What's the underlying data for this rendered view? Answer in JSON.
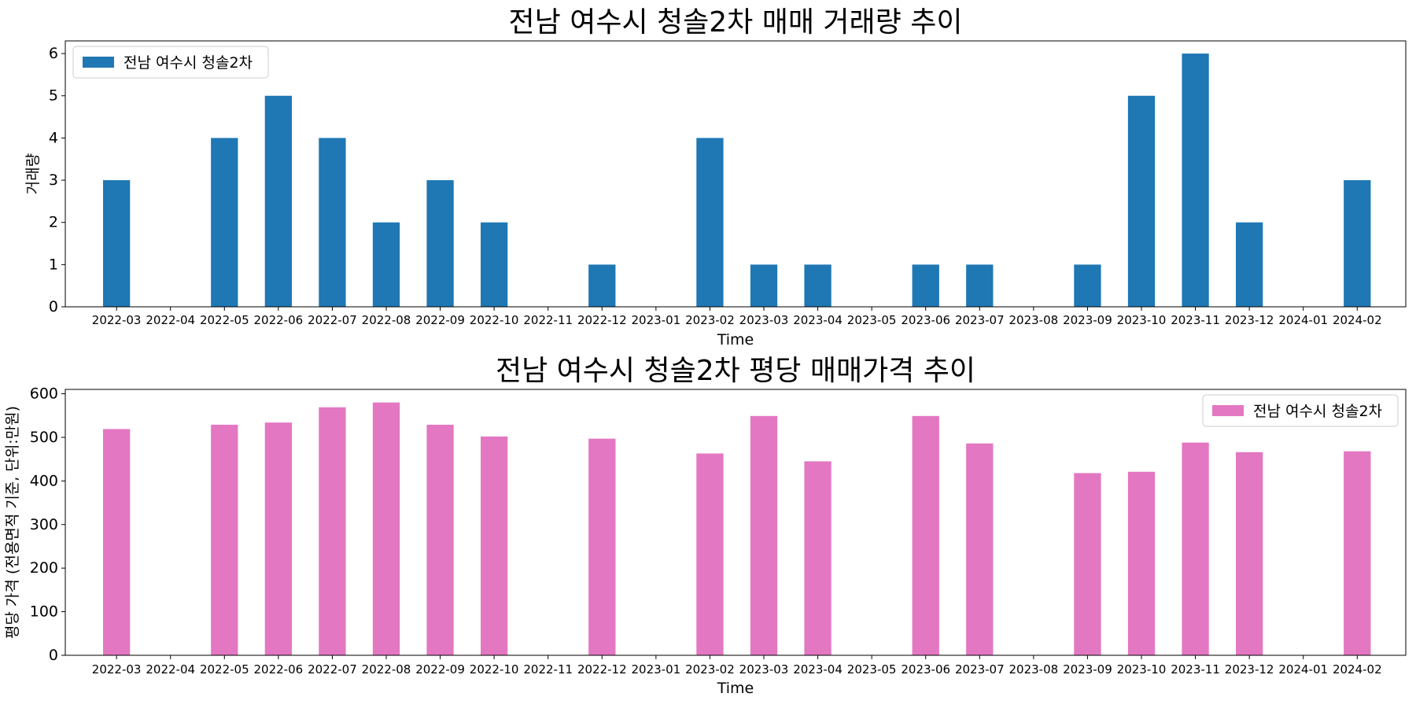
{
  "chart_data": [
    {
      "type": "bar",
      "title": "전남 여수시 청솔2차 매매 거래량 추이",
      "xlabel": "Time",
      "ylabel": "거래량",
      "ylim": [
        0,
        6.3
      ],
      "yticks": [
        0,
        1,
        2,
        3,
        4,
        5,
        6
      ],
      "legend": "upper-left",
      "color": "#1f77b4",
      "categories": [
        "2022-03",
        "2022-04",
        "2022-05",
        "2022-06",
        "2022-07",
        "2022-08",
        "2022-09",
        "2022-10",
        "2022-11",
        "2022-12",
        "2023-01",
        "2023-02",
        "2023-03",
        "2023-04",
        "2023-05",
        "2023-06",
        "2023-07",
        "2023-08",
        "2023-09",
        "2023-10",
        "2023-11",
        "2023-12",
        "2024-01",
        "2024-02"
      ],
      "series": [
        {
          "name": "전남 여수시 청솔2차",
          "values": [
            3,
            0,
            4,
            5,
            4,
            2,
            3,
            2,
            0,
            1,
            0,
            4,
            1,
            1,
            0,
            1,
            1,
            0,
            1,
            5,
            6,
            2,
            0,
            3
          ]
        }
      ]
    },
    {
      "type": "bar",
      "title": "전남 여수시 청솔2차 평당 매매가격 추이",
      "xlabel": "Time",
      "ylabel": "평당 가격 (전용면적 기준, 단위:만원)",
      "ylim": [
        0,
        610
      ],
      "yticks": [
        0,
        100,
        200,
        300,
        400,
        500,
        600
      ],
      "legend": "upper-right",
      "color": "#e377c2",
      "categories": [
        "2022-03",
        "2022-04",
        "2022-05",
        "2022-06",
        "2022-07",
        "2022-08",
        "2022-09",
        "2022-10",
        "2022-11",
        "2022-12",
        "2023-01",
        "2023-02",
        "2023-03",
        "2023-04",
        "2023-05",
        "2023-06",
        "2023-07",
        "2023-08",
        "2023-09",
        "2023-10",
        "2023-11",
        "2023-12",
        "2024-01",
        "2024-02"
      ],
      "series": [
        {
          "name": "전남 여수시 청솔2차",
          "values": [
            519,
            0,
            529,
            534,
            569,
            580,
            529,
            502,
            0,
            497,
            0,
            463,
            549,
            445,
            0,
            549,
            486,
            0,
            418,
            421,
            488,
            466,
            0,
            468
          ]
        }
      ]
    }
  ]
}
